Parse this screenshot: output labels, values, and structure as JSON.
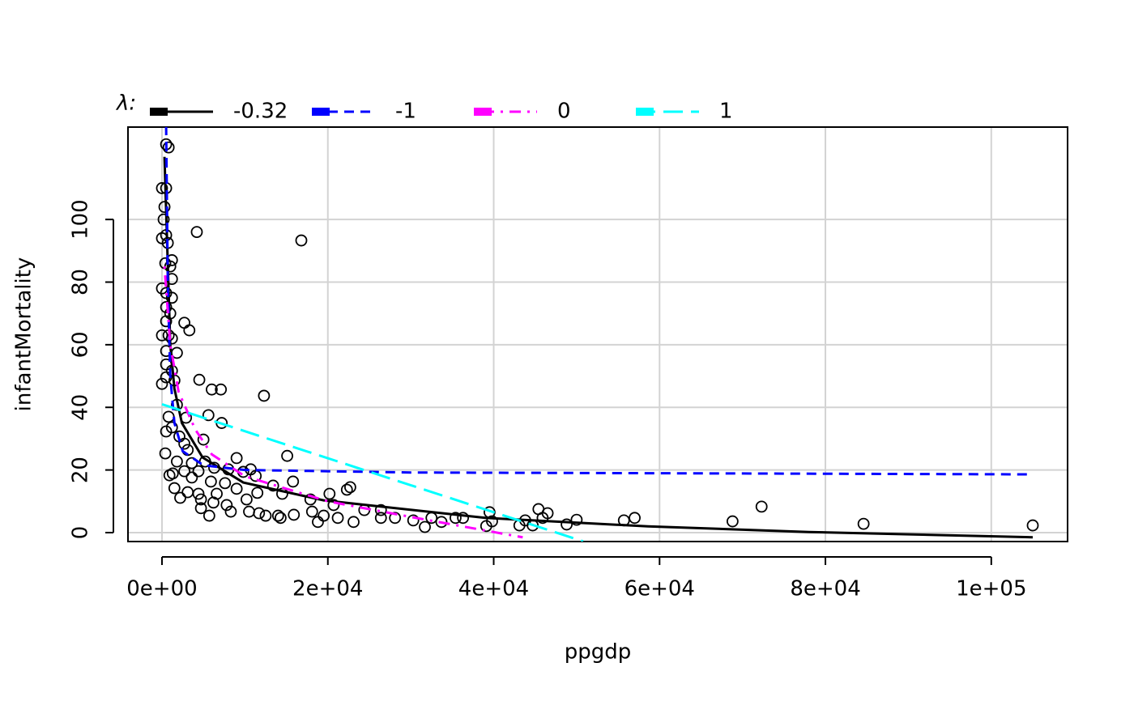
{
  "chart_data": {
    "type": "scatter",
    "xlabel": "ppgdp",
    "ylabel": "infantMortality",
    "xlim": [
      -4100,
      109200
    ],
    "ylim": [
      -2.85,
      129.5
    ],
    "xticks": [
      {
        "value": 0,
        "label": "0e+00"
      },
      {
        "value": 20000,
        "label": "2e+04"
      },
      {
        "value": 40000,
        "label": "4e+04"
      },
      {
        "value": 60000,
        "label": "6e+04"
      },
      {
        "value": 80000,
        "label": "8e+04"
      },
      {
        "value": 100000,
        "label": "1e+05"
      }
    ],
    "yticks": [
      0,
      20,
      40,
      60,
      80,
      100
    ],
    "grid": true,
    "legend_title": "λ:",
    "points": {
      "color": "#000000",
      "x": [
        500,
        800,
        0,
        500,
        300,
        200,
        0,
        500,
        700,
        4200,
        16800,
        1200,
        1000,
        400,
        1200,
        0,
        500,
        1200,
        500,
        1000,
        500,
        2700,
        3300,
        0,
        800,
        1200,
        500,
        1800,
        500,
        1200,
        0,
        500,
        1500,
        4500,
        6000,
        7100,
        12300,
        1800,
        800,
        2900,
        5600,
        7200,
        500,
        1200,
        2100,
        5000,
        2700,
        3100,
        400,
        15100,
        9000,
        1800,
        3600,
        5200,
        6300,
        8000,
        10700,
        2700,
        4400,
        1300,
        900,
        3600,
        9800,
        11300,
        5900,
        7600,
        15800,
        13400,
        22700,
        22300,
        9000,
        1500,
        3100,
        4400,
        6600,
        11500,
        14500,
        20200,
        2200,
        4700,
        10200,
        17900,
        6200,
        7800,
        20700,
        4700,
        72300,
        8300,
        10500,
        18100,
        24400,
        26400,
        45400,
        46500,
        39500,
        5700,
        11700,
        14000,
        15900,
        19500,
        12500,
        32500,
        35400,
        36300,
        26400,
        21200,
        28100,
        14300,
        45900,
        50000,
        55700,
        57000,
        30300,
        33700,
        23100,
        18800,
        43800,
        39800,
        68800,
        84600,
        105000,
        39100,
        43100,
        31700,
        44700,
        48800
      ],
      "y": [
        124,
        123,
        110,
        110,
        104,
        100,
        94,
        95,
        92.5,
        96,
        93.3,
        87,
        85,
        86,
        81,
        78,
        76.5,
        75,
        72,
        70,
        67.5,
        67,
        64.6,
        63,
        63,
        62,
        58,
        57.4,
        53.7,
        51.7,
        47.5,
        49.6,
        48.6,
        48.8,
        45.7,
        45.7,
        43.7,
        40.8,
        37,
        36.7,
        37.5,
        35,
        32.3,
        33.6,
        30.7,
        29.7,
        28.4,
        26.4,
        25.3,
        24.5,
        23.8,
        22.7,
        22.2,
        22.7,
        20.7,
        20.2,
        20.2,
        19.6,
        19.6,
        18.9,
        18.3,
        17.6,
        19.4,
        18.1,
        16.3,
        15.8,
        16.3,
        15,
        14.5,
        13.7,
        14,
        14.2,
        12.9,
        12.4,
        12.4,
        12.7,
        12.4,
        12.4,
        11.1,
        10.6,
        10.6,
        10.6,
        9.6,
        8.8,
        8.8,
        7.8,
        8.3,
        6.7,
        6.7,
        6.7,
        7.2,
        7.2,
        7.5,
        6.2,
        6.5,
        5.4,
        6.2,
        5.4,
        5.7,
        5.4,
        5.4,
        4.7,
        4.7,
        4.7,
        4.7,
        4.7,
        4.7,
        4.7,
        4.7,
        4.1,
        3.9,
        4.7,
        3.9,
        3.4,
        3.4,
        3.4,
        3.9,
        3.6,
        3.6,
        2.8,
        2.3,
        2.1,
        2.3,
        1.8,
        2.3,
        2.6
      ]
    },
    "series": [
      {
        "name": "-0.32",
        "color": "#000000",
        "linestyle": "solid",
        "x": [
          300,
          1000,
          1500,
          2400,
          4900,
          9800,
          19500,
          39000,
          58600,
          78000,
          105000
        ],
        "values": [
          120,
          60,
          46,
          35,
          24,
          16,
          10.3,
          4.7,
          2,
          0.2,
          -1.5
        ]
      },
      {
        "name": "-1",
        "color": "#0000ff",
        "linestyle": "dashed",
        "x": [
          500,
          700,
          1000,
          1500,
          2500,
          5000,
          10000,
          30000,
          105000
        ],
        "values": [
          130,
          80,
          50,
          35,
          26,
          21.5,
          20,
          19.2,
          18.6
        ]
      },
      {
        "name": "0",
        "color": "#ff00ff",
        "linestyle": "dotdash",
        "x": [
          300,
          1000,
          2000,
          4000,
          6000,
          10000,
          20000,
          30000,
          43500
        ],
        "values": [
          85,
          60,
          45,
          33,
          25,
          18,
          10,
          5,
          -1.5
        ]
      },
      {
        "name": "1",
        "color": "#00ffff",
        "linestyle": "longdash",
        "x": [
          0,
          50800
        ],
        "values": [
          41,
          -2.8
        ]
      }
    ]
  }
}
